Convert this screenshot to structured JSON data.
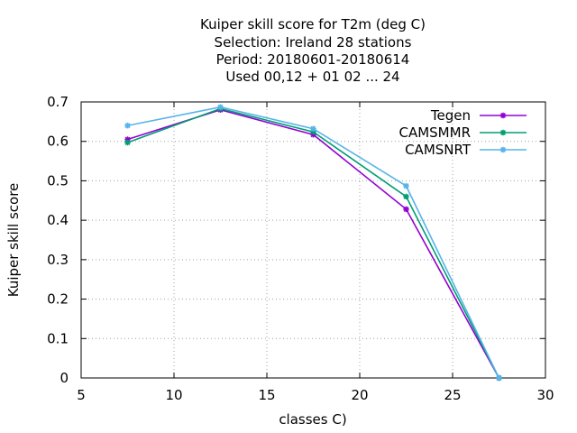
{
  "chart_data": {
    "type": "line",
    "title_lines": [
      "Kuiper skill score  for T2m (deg C)",
      "Selection: Ireland      28 stations",
      "Period: 20180601-20180614",
      "Used  00,12  + 01 02 ... 24"
    ],
    "xlabel": "classes C)",
    "ylabel": "Kuiper skill score",
    "xlim": [
      5,
      30
    ],
    "ylim": [
      0,
      0.7
    ],
    "xticks": [
      5,
      10,
      15,
      20,
      25,
      30
    ],
    "yticks": [
      0,
      0.1,
      0.2,
      0.3,
      0.4,
      0.5,
      0.6,
      0.7
    ],
    "ytick_labels": [
      "0",
      "0.1",
      "0.2",
      "0.3",
      "0.4",
      "0.5",
      "0.6",
      "0.7"
    ],
    "grid": true,
    "legend_position": "top-right",
    "x": [
      7.5,
      12.5,
      17.5,
      22.5,
      27.5
    ],
    "series": [
      {
        "name": "Tegen",
        "color": "#9400d3",
        "values": [
          0.605,
          0.68,
          0.617,
          0.428,
          0.0
        ]
      },
      {
        "name": "CAMSMMR",
        "color": "#009e73",
        "values": [
          0.597,
          0.683,
          0.624,
          0.46,
          0.0
        ]
      },
      {
        "name": "CAMSNRT",
        "color": "#56b4e9",
        "values": [
          0.64,
          0.687,
          0.632,
          0.487,
          0.0
        ]
      }
    ]
  }
}
